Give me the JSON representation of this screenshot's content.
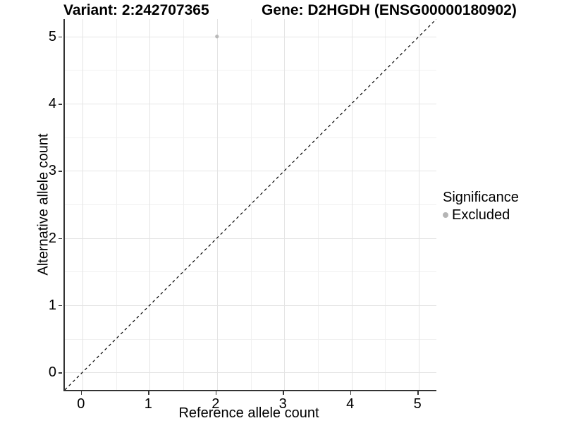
{
  "titles": {
    "left": "Variant: 2:242707365",
    "right": "Gene: D2HGDH (ENSG00000180902)"
  },
  "chart_data": {
    "type": "scatter",
    "xlabel": "Reference allele count",
    "ylabel": "Alternative allele count",
    "x_ticks": [
      0,
      1,
      2,
      3,
      4,
      5
    ],
    "y_ticks": [
      0,
      1,
      2,
      3,
      4,
      5
    ],
    "xlim": [
      -0.26,
      5.26
    ],
    "ylim": [
      -0.26,
      5.26
    ],
    "grid": "major+minor",
    "legend_position": "right",
    "points": [
      {
        "x": 2,
        "y": 5,
        "series": "Excluded"
      }
    ],
    "identity_line": {
      "style": "dashed",
      "slope": 1,
      "intercept": 0
    },
    "legend": {
      "title": "Significance",
      "entries": [
        {
          "label": "Excluded",
          "color": "#b5b5b5"
        }
      ]
    },
    "colors": {
      "point": "#b9b9b9",
      "grid_major": "#e4e4e4",
      "grid_minor": "#f0f0f0",
      "axis": "#333333",
      "text": "#000000",
      "background": "#ffffff"
    }
  }
}
